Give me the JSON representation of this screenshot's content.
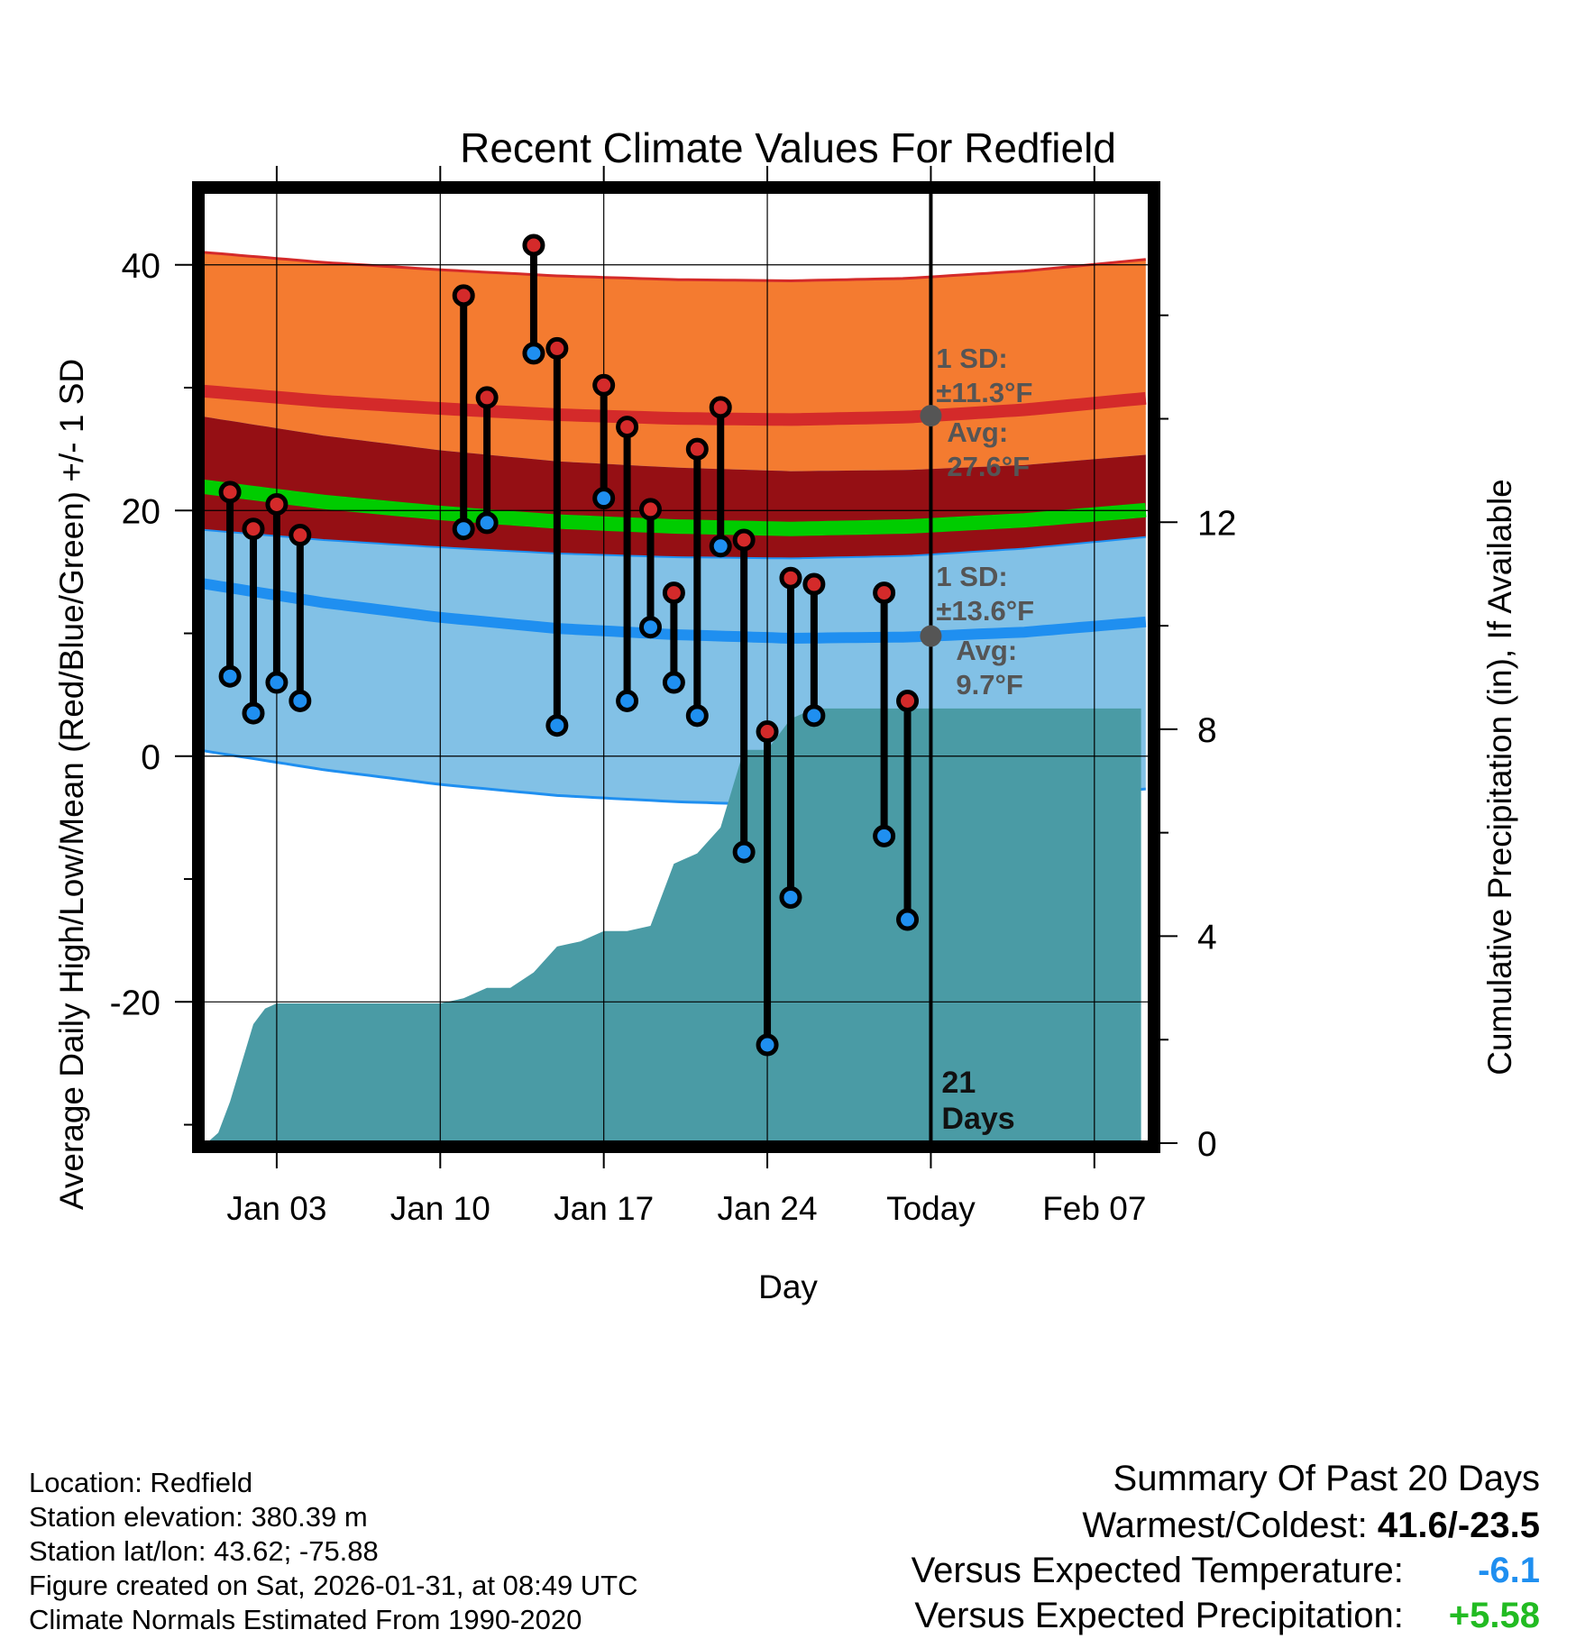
{
  "chart_data": {
    "type": "line",
    "title": "Recent Climate Values For Redfield",
    "xlabel": "Day",
    "ylabel": "Average Daily High/Low/Mean (Red/Blue/Green) +/- 1 SD",
    "y2label": "Cumulative Precipitation (in), If Available",
    "x_tick_labels": [
      "Jan 03",
      "Jan 10",
      "Jan 17",
      "Jan 24",
      "Today",
      "Feb 07"
    ],
    "x_tick_days": [
      3,
      10,
      17,
      24,
      31,
      38
    ],
    "xlim": [
      -0.2,
      40.4
    ],
    "ylim": [
      -31.5,
      46
    ],
    "y_ticks": [
      -20,
      0,
      20,
      40
    ],
    "y2lim": [
      0,
      18.4
    ],
    "y2_ticks": [
      0,
      4,
      8,
      12
    ],
    "today_day": 31,
    "today_label": "21\nDays",
    "normal_days": [
      0,
      5,
      10,
      15,
      20,
      25,
      30,
      35,
      40
    ],
    "normal_high_avg": [
      29.7,
      28.9,
      28.3,
      27.8,
      27.5,
      27.4,
      27.6,
      28.2,
      29.1
    ],
    "normal_high_sd": [
      11.3,
      11.3,
      11.3,
      11.3,
      11.3,
      11.3,
      11.3,
      11.3,
      11.3
    ],
    "normal_low_avg": [
      14.0,
      12.5,
      11.3,
      10.4,
      9.9,
      9.6,
      9.7,
      10.1,
      10.9
    ],
    "normal_low_sd": [
      13.6,
      13.6,
      13.6,
      13.6,
      13.6,
      13.6,
      13.6,
      13.6,
      13.6
    ],
    "normal_mean_avg": [
      21.9,
      20.7,
      19.8,
      19.1,
      18.7,
      18.5,
      18.7,
      19.2,
      20.0
    ],
    "observed": [
      {
        "day": 1,
        "high": 21.5,
        "low": 6.5
      },
      {
        "day": 2,
        "high": 18.5,
        "low": 3.5
      },
      {
        "day": 3,
        "high": 20.5,
        "low": 6.0
      },
      {
        "day": 4,
        "high": 18.0,
        "low": 4.5
      },
      {
        "day": 11,
        "high": 37.5,
        "low": 18.5
      },
      {
        "day": 12,
        "high": 29.2,
        "low": 19.0
      },
      {
        "day": 14,
        "high": 41.6,
        "low": 32.8
      },
      {
        "day": 15,
        "high": 33.2,
        "low": 2.5
      },
      {
        "day": 17,
        "high": 30.2,
        "low": 21.0
      },
      {
        "day": 18,
        "high": 26.8,
        "low": 4.5
      },
      {
        "day": 19,
        "high": 20.1,
        "low": 10.5
      },
      {
        "day": 20,
        "high": 13.3,
        "low": 6.0
      },
      {
        "day": 21,
        "high": 25.0,
        "low": 3.3
      },
      {
        "day": 22,
        "high": 28.4,
        "low": 17.1
      },
      {
        "day": 23,
        "high": 17.6,
        "low": -7.8
      },
      {
        "day": 24,
        "high": 2.0,
        "low": -23.5
      },
      {
        "day": 25,
        "high": 14.5,
        "low": -11.5
      },
      {
        "day": 26,
        "high": 14.0,
        "low": 3.3
      },
      {
        "day": 29,
        "high": 13.3,
        "low": -6.5
      },
      {
        "day": 30,
        "high": 4.5,
        "low": -13.3
      }
    ],
    "precip_days": [
      0,
      0.5,
      1,
      2,
      2.5,
      3,
      4,
      5,
      6,
      7,
      8,
      9,
      10,
      11,
      12,
      13,
      14,
      15,
      16,
      17,
      18,
      19,
      20,
      21,
      22,
      23,
      24,
      25,
      26,
      27,
      28,
      29,
      30,
      31,
      35,
      40
    ],
    "precip_in": [
      0,
      0.2,
      0.8,
      2.3,
      2.6,
      2.7,
      2.7,
      2.7,
      2.7,
      2.7,
      2.7,
      2.7,
      2.7,
      2.8,
      3.0,
      3.0,
      3.3,
      3.8,
      3.9,
      4.1,
      4.1,
      4.2,
      5.4,
      5.6,
      6.1,
      7.6,
      7.6,
      8.2,
      8.4,
      8.4,
      8.4,
      8.4,
      8.4,
      8.4,
      8.4,
      8.4
    ],
    "annotations": {
      "high_sd_label": "1 SD:",
      "high_sd_value": "±11.3°F",
      "high_avg_label": "Avg:",
      "high_avg_value": "27.6°F",
      "low_sd_label": "1 SD:",
      "low_sd_value": "±13.6°F",
      "low_avg_label": "Avg:",
      "low_avg_value": "9.7°F"
    },
    "colors": {
      "high_band": "#f47b30",
      "high_edge": "#d42a2a",
      "high_avg": "#d42a2a",
      "overlap_band": "#950f14",
      "low_band": "#82c1e6",
      "low_edge": "#1f8ff0",
      "low_avg": "#1f8ff0",
      "mean_line": "#00cc00",
      "precip": "#4a9ba5",
      "high_dot": "#d42a2a",
      "low_dot": "#1f8ff0",
      "annotation": "#555555"
    }
  },
  "location_info": {
    "location": "Location: Redfield",
    "elevation": "Station elevation: 380.39 m",
    "latlon": "Station lat/lon: 43.62; -75.88",
    "created": "Figure created on Sat, 2026-01-31, at 08:49 UTC",
    "normals": "Climate Normals Estimated From 1990-2020"
  },
  "summary": {
    "title": "Summary Of Past 20 Days",
    "warmest_coldest_label": "Warmest/Coldest:",
    "warmest_coldest_value": "41.6/-23.5",
    "temp_label": "Versus Expected Temperature:",
    "temp_value": "-6.1",
    "temp_color": "#1f8ff0",
    "precip_label": "Versus Expected Precipitation:",
    "precip_value": "+5.58",
    "precip_color": "#22bb22"
  }
}
